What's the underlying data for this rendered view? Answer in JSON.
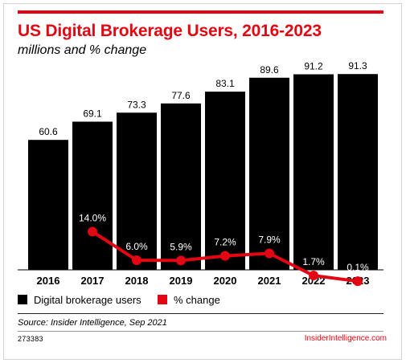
{
  "title": "US Digital Brokerage Users, 2016-2023",
  "subtitle": "millions and % change",
  "source": "Source: Insider Intelligence, Sep 2021",
  "chart_id": "273383",
  "brand": "InsiderIntelligence.com",
  "colors": {
    "accent": "#e30613",
    "bars": "#000000"
  },
  "legend": [
    {
      "label": "Digital brokerage users",
      "color": "#000000"
    },
    {
      "label": "% change",
      "color": "#e30613"
    }
  ],
  "chart_data": {
    "type": "bar",
    "categories": [
      "2016",
      "2017",
      "2018",
      "2019",
      "2020",
      "2021",
      "2022",
      "2023"
    ],
    "series": [
      {
        "name": "Digital brokerage users",
        "type": "bar",
        "values": [
          60.6,
          69.1,
          73.3,
          77.6,
          83.1,
          89.6,
          91.2,
          91.3
        ],
        "labels": [
          "60.6",
          "69.1",
          "73.3",
          "77.6",
          "83.1",
          "89.6",
          "91.2",
          "91.3"
        ]
      },
      {
        "name": "% change",
        "type": "line",
        "values": [
          null,
          14.0,
          6.0,
          5.9,
          7.2,
          7.9,
          1.7,
          0.1
        ],
        "labels": [
          "",
          "14.0%",
          "6.0%",
          "5.9%",
          "7.2%",
          "7.9%",
          "1.7%",
          "0.1%"
        ]
      }
    ],
    "legend_position": "bottom-left",
    "grid": false
  }
}
